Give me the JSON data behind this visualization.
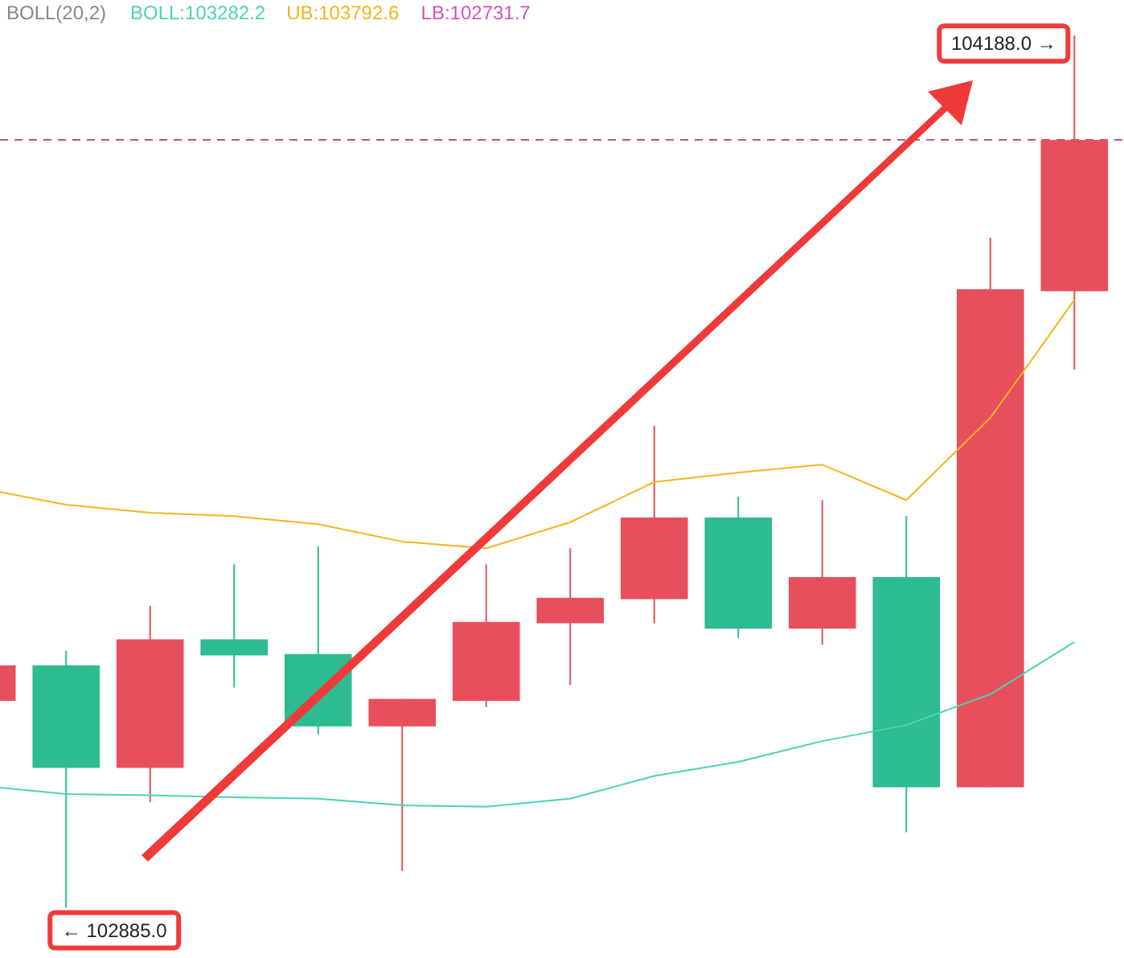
{
  "chart_data": {
    "type": "candlestick",
    "legend_title": "BOLL(20,2)",
    "legend": "top left",
    "categories": [
      null,
      null,
      null,
      null,
      null,
      null,
      null,
      null,
      null,
      null,
      null,
      null,
      null,
      null
    ],
    "ylim": [
      102810,
      104241
    ],
    "ohlc": [
      [
        103194,
        103247,
        103194,
        103247
      ],
      [
        103247,
        103269,
        102885,
        103094
      ],
      [
        103094,
        103336,
        103043,
        103286
      ],
      [
        103286,
        103398,
        103214,
        103262
      ],
      [
        103264,
        103425,
        103144,
        103156
      ],
      [
        103156,
        103197,
        102940,
        103197
      ],
      [
        103194,
        103398,
        103185,
        103312
      ],
      [
        103310,
        103422,
        103218,
        103348
      ],
      [
        103346,
        103605,
        103310,
        103468
      ],
      [
        103468,
        103499,
        103288,
        103302
      ],
      [
        103302,
        103494,
        103278,
        103379
      ],
      [
        103379,
        103470,
        102998,
        103065
      ],
      [
        103065,
        103886,
        103065,
        103809
      ],
      [
        103806,
        104188,
        103689,
        104032
      ]
    ],
    "colors": [
      "#e84f5c",
      "#2dbb91",
      "#e84f5c",
      "#2dbb91",
      "#2dbb91",
      "#e84f5c",
      "#e84f5c",
      "#e84f5c",
      "#e84f5c",
      "#2dbb91",
      "#e84f5c",
      "#2dbb91",
      "#e84f5c",
      "#e84f5c"
    ],
    "series": [
      {
        "name": "BOLL:103282.2",
        "type": "line",
        "color": "#4fd1b2",
        "values": [
          103067,
          103055,
          103053,
          103050,
          103048,
          103038,
          103036,
          103048,
          103082,
          103103,
          103134,
          103158,
          103204,
          103282
        ]
      },
      {
        "name": "UB:103792.6",
        "type": "line",
        "color": "#f2b51f",
        "values": [
          103511,
          103487,
          103475,
          103470,
          103458,
          103432,
          103422,
          103461,
          103521,
          103535,
          103547,
          103494,
          103617,
          103793
        ]
      },
      {
        "name": "LB:102731.7",
        "type": "line",
        "color": "#d952b8",
        "values": [
          null,
          null,
          null,
          null,
          null,
          null,
          null,
          null,
          null,
          null,
          null,
          null,
          null,
          null
        ]
      }
    ],
    "ref_lines": [
      {
        "axis": "y",
        "value": 104032,
        "color": "#c4566e",
        "line_style": "dashed"
      }
    ],
    "annotations": [
      "104188.0 →",
      "← 102885.0"
    ]
  }
}
